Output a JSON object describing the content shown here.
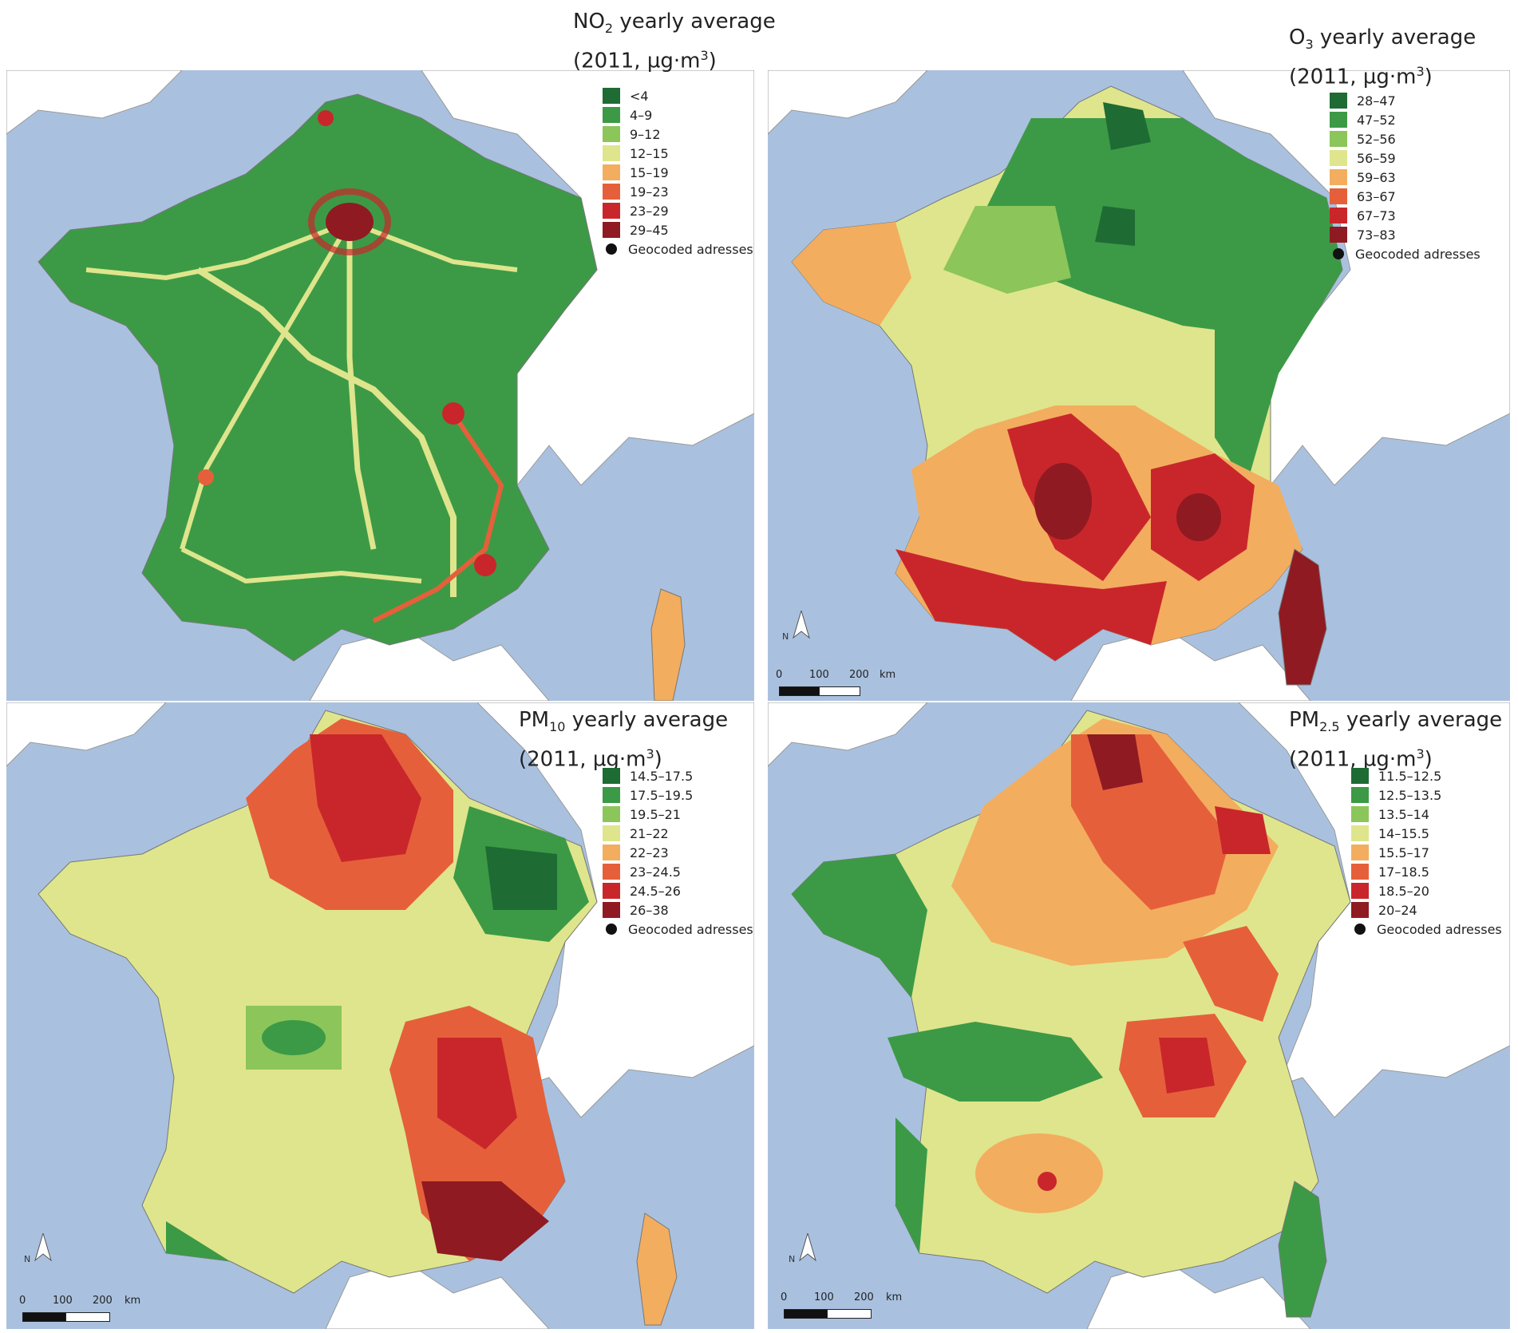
{
  "panels": [
    {
      "id": "no2",
      "title_main": "NO",
      "title_sub": "2",
      "title_rest": " yearly average",
      "title_line2": "(2011, µg·m",
      "title_sup": "3",
      "title_end": ")",
      "legend": [
        {
          "label": "<4",
          "color": "#1e6b34"
        },
        {
          "label": "4–9",
          "color": "#3c9a46"
        },
        {
          "label": "9–12",
          "color": "#8cc55a"
        },
        {
          "label": "12–15",
          "color": "#dfe58c"
        },
        {
          "label": "15–19",
          "color": "#f3ad5f"
        },
        {
          "label": "19–23",
          "color": "#e5603a"
        },
        {
          "label": "23–29",
          "color": "#c9262b"
        },
        {
          "label": "29–45",
          "color": "#8f1a22"
        }
      ],
      "points_label": "Geocoded adresses"
    },
    {
      "id": "o3",
      "title_main": "O",
      "title_sub": "3",
      "title_rest": " yearly average",
      "title_line2": "(2011, µg·m",
      "title_sup": "3",
      "title_end": ")",
      "legend": [
        {
          "label": "28–47",
          "color": "#1e6b34"
        },
        {
          "label": "47–52",
          "color": "#3c9a46"
        },
        {
          "label": "52–56",
          "color": "#8cc55a"
        },
        {
          "label": "56–59",
          "color": "#dfe58c"
        },
        {
          "label": "59–63",
          "color": "#f3ad5f"
        },
        {
          "label": "63–67",
          "color": "#e5603a"
        },
        {
          "label": "67–73",
          "color": "#c9262b"
        },
        {
          "label": "73–83",
          "color": "#8f1a22"
        }
      ],
      "points_label": "Geocoded adresses",
      "scale": {
        "labels": [
          "0",
          "100",
          "200",
          "km"
        ],
        "north": "N"
      }
    },
    {
      "id": "pm10",
      "title_main": "PM",
      "title_sub": "10",
      "title_rest": " yearly average",
      "title_line2": "(2011, µg·m",
      "title_sup": "3",
      "title_end": ")",
      "legend": [
        {
          "label": "14.5–17.5",
          "color": "#1e6b34"
        },
        {
          "label": "17.5–19.5",
          "color": "#3c9a46"
        },
        {
          "label": "19.5–21",
          "color": "#8cc55a"
        },
        {
          "label": "21–22",
          "color": "#dfe58c"
        },
        {
          "label": "22–23",
          "color": "#f3ad5f"
        },
        {
          "label": "23–24.5",
          "color": "#e5603a"
        },
        {
          "label": "24.5–26",
          "color": "#c9262b"
        },
        {
          "label": "26–38",
          "color": "#8f1a22"
        }
      ],
      "points_label": "Geocoded adresses",
      "scale": {
        "labels": [
          "0",
          "100",
          "200",
          "km"
        ],
        "north": "N"
      }
    },
    {
      "id": "pm25",
      "title_main": "PM",
      "title_sub": "2.5",
      "title_rest": " yearly average",
      "title_line2": "(2011, µg·m",
      "title_sup": "3",
      "title_end": ")",
      "legend": [
        {
          "label": "11.5–12.5",
          "color": "#1e6b34"
        },
        {
          "label": "12.5–13.5",
          "color": "#3c9a46"
        },
        {
          "label": "13.5–14",
          "color": "#8cc55a"
        },
        {
          "label": "14–15.5",
          "color": "#dfe58c"
        },
        {
          "label": "15.5–17",
          "color": "#f3ad5f"
        },
        {
          "label": "17–18.5",
          "color": "#e5603a"
        },
        {
          "label": "18.5–20",
          "color": "#c9262b"
        },
        {
          "label": "20–24",
          "color": "#8f1a22"
        }
      ],
      "points_label": "Geocoded adresses",
      "scale": {
        "labels": [
          "0",
          "100",
          "200",
          "km"
        ],
        "north": "N"
      }
    }
  ],
  "colors": {
    "sea": "#a9c1df",
    "land_outside": "#ffffff",
    "border": "#9a9a9a",
    "point": "#111111"
  }
}
